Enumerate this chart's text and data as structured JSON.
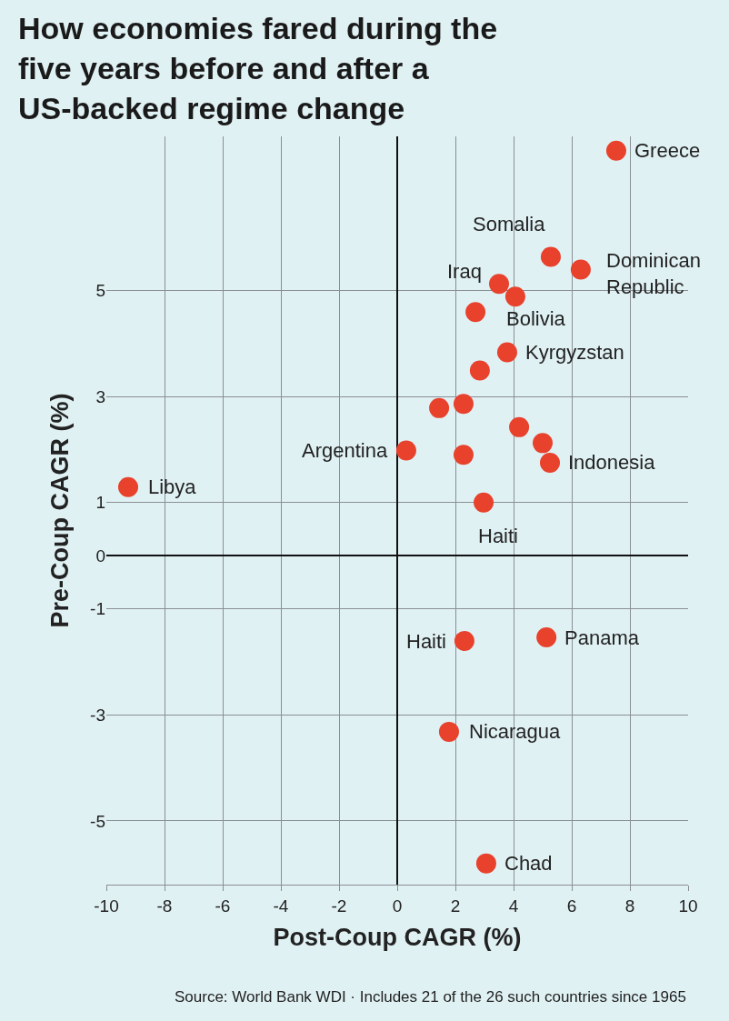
{
  "chart_data": {
    "type": "scatter",
    "title": "How economies fared during the five years before and after a US-backed regime change",
    "xlabel": "Post-Coup CAGR (%)",
    "ylabel": "Pre-Coup CAGR (%)",
    "x": [
      7.53,
      5.28,
      6.31,
      3.5,
      4.06,
      2.69,
      3.78,
      2.84,
      1.44,
      2.28,
      4.19,
      5.0,
      5.25,
      0.31,
      2.28,
      -9.25,
      2.97,
      2.31,
      5.13,
      1.78,
      3.06
    ],
    "series": [
      {
        "color": "#e8412c",
        "values": [
          7.63,
          5.63,
          5.39,
          5.12,
          4.88,
          4.59,
          3.83,
          3.49,
          2.78,
          2.86,
          2.42,
          2.12,
          1.75,
          1.98,
          1.9,
          1.29,
          1.0,
          -1.61,
          -1.54,
          -3.32,
          -5.8
        ]
      }
    ],
    "xlim": [
      -10,
      10
    ],
    "xticks": [
      -10,
      -8,
      -6,
      -4,
      -2,
      0,
      2,
      4,
      6,
      8,
      10
    ],
    "ylim": [
      -6.2,
      7.9
    ],
    "yticks": [
      -5,
      -3,
      -1,
      0,
      1,
      3,
      5
    ],
    "grid": true,
    "marker": "circle",
    "annotations": [
      {
        "text": "Greece",
        "x": 7.53,
        "y": 7.63
      },
      {
        "text": "Somalia",
        "x": 5.28,
        "y": 5.63
      },
      {
        "text": "Dominican Republic",
        "x": 6.31,
        "y": 5.39
      },
      {
        "text": "Iraq",
        "x": 3.5,
        "y": 5.12
      },
      {
        "text": "Bolivia",
        "x": 4.06,
        "y": 4.88
      },
      {
        "text": "Kyrgyzstan",
        "x": 3.78,
        "y": 3.83
      },
      {
        "text": "Indonesia",
        "x": 5.25,
        "y": 1.75
      },
      {
        "text": "Argentina",
        "x": 0.31,
        "y": 1.98
      },
      {
        "text": "Libya",
        "x": -9.25,
        "y": 1.29
      },
      {
        "text": "Haiti",
        "x": 2.97,
        "y": 1.0
      },
      {
        "text": "Haiti",
        "x": 2.31,
        "y": -1.61
      },
      {
        "text": "Panama",
        "x": 5.13,
        "y": -1.54
      },
      {
        "text": "Nicaragua",
        "x": 1.78,
        "y": -3.32
      },
      {
        "text": "Chad",
        "x": 3.06,
        "y": -5.8
      },
      "Source: World Bank WDI · Includes 21 of the 26 such countries since 1965"
    ]
  }
}
